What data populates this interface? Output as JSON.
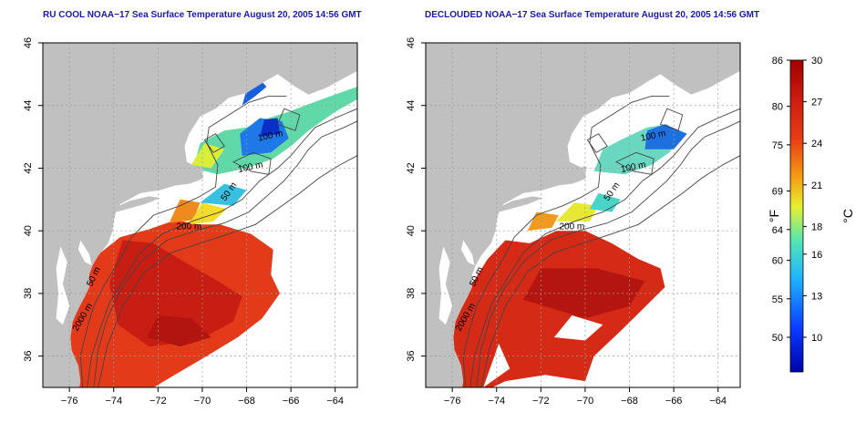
{
  "panels": [
    {
      "title": "RU COOL NOAA−17 Sea Surface Temperature August 20, 2005 14:56 GMT",
      "contour_labels": [
        "100 m",
        "100 m",
        "50 m",
        "200 m",
        "50 m",
        "2000 m"
      ]
    },
    {
      "title": "DECLOUDED NOAA−17 Sea Surface Temperature August 20, 2005 14:56 GMT",
      "contour_labels": [
        "100 m",
        "100 m",
        "50 m",
        "200 m",
        "50 m",
        "2000 m"
      ]
    }
  ],
  "axes": {
    "x_ticks": [
      "−76",
      "−74",
      "−72",
      "−70",
      "−68",
      "−66",
      "−64"
    ],
    "x_values": [
      -76,
      -74,
      -72,
      -70,
      -68,
      -66,
      -64
    ],
    "y_ticks": [
      "36",
      "38",
      "40",
      "42",
      "44",
      "46"
    ],
    "y_values": [
      36,
      38,
      40,
      42,
      44,
      46
    ],
    "lon_range": [
      -77.2,
      -63
    ],
    "lat_range": [
      35,
      46
    ]
  },
  "colorbar": {
    "f_ticks": [
      "86",
      "80",
      "75",
      "69",
      "64",
      "60",
      "55",
      "50"
    ],
    "f_values": [
      86,
      80,
      75,
      69,
      64,
      60,
      55,
      50
    ],
    "c_ticks": [
      "30",
      "27",
      "24",
      "21",
      "18",
      "16",
      "13",
      "10"
    ],
    "c_values": [
      30,
      27,
      24,
      21,
      18,
      16,
      13,
      10
    ],
    "f_label": "°F",
    "c_label": "°C",
    "range_c": [
      7.5,
      30
    ]
  },
  "colors": {
    "title": "#1a1aa8",
    "land": "#c0c0c0",
    "contour": "#444444"
  }
}
